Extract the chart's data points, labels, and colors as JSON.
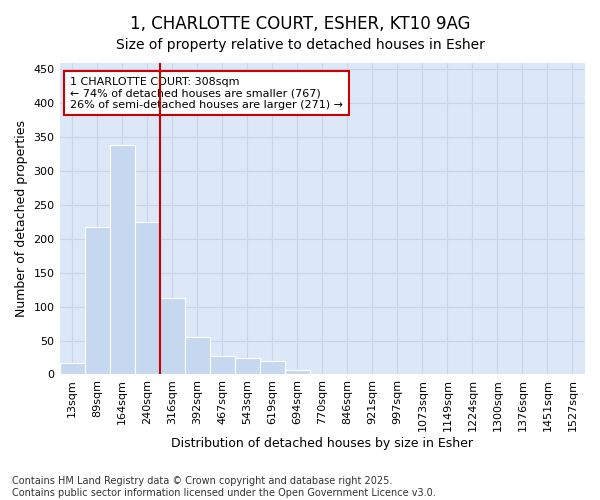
{
  "title_line1": "1, CHARLOTTE COURT, ESHER, KT10 9AG",
  "title_line2": "Size of property relative to detached houses in Esher",
  "xlabel": "Distribution of detached houses by size in Esher",
  "ylabel": "Number of detached properties",
  "categories": [
    "13sqm",
    "89sqm",
    "164sqm",
    "240sqm",
    "316sqm",
    "392sqm",
    "467sqm",
    "543sqm",
    "619sqm",
    "694sqm",
    "770sqm",
    "846sqm",
    "921sqm",
    "997sqm",
    "1073sqm",
    "1149sqm",
    "1224sqm",
    "1300sqm",
    "1376sqm",
    "1451sqm",
    "1527sqm"
  ],
  "values": [
    17,
    218,
    338,
    225,
    113,
    55,
    27,
    25,
    20,
    7,
    0,
    0,
    0,
    0,
    0,
    0,
    0,
    0,
    0,
    0,
    0
  ],
  "bar_color": "#c5d8f0",
  "bar_edge_color": "white",
  "vline_color": "#cc0000",
  "vline_index": 4,
  "annotation_text": "1 CHARLOTTE COURT: 308sqm\n← 74% of detached houses are smaller (767)\n26% of semi-detached houses are larger (271) →",
  "annotation_box_edgecolor": "#cc0000",
  "annotation_box_facecolor": "white",
  "ylim": [
    0,
    460
  ],
  "yticks": [
    0,
    50,
    100,
    150,
    200,
    250,
    300,
    350,
    400,
    450
  ],
  "grid_color": "#c8d4e8",
  "bg_color": "#dce8f8",
  "footnote": "Contains HM Land Registry data © Crown copyright and database right 2025.\nContains public sector information licensed under the Open Government Licence v3.0.",
  "footnote_fontsize": 7,
  "title_fontsize": 12,
  "subtitle_fontsize": 10,
  "label_fontsize": 9,
  "tick_fontsize": 8,
  "annot_fontsize": 8
}
